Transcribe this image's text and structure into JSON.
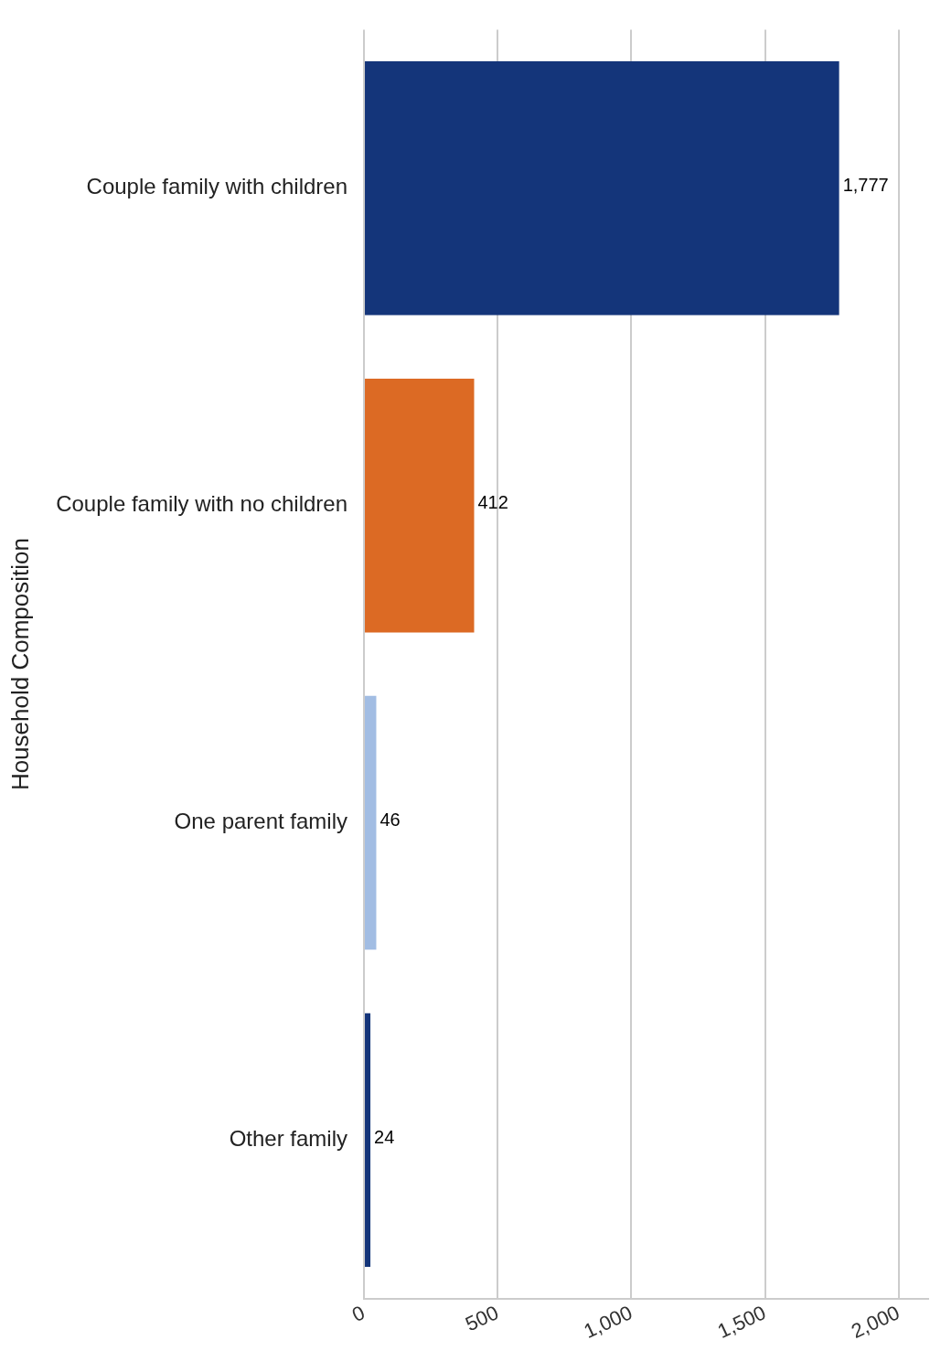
{
  "chart_data": {
    "type": "bar",
    "orientation": "horizontal",
    "ylabel": "Household Composition",
    "categories": [
      "Couple family with children",
      "Couple family with no children",
      "One parent family",
      "Other family"
    ],
    "values": [
      1777,
      412,
      46,
      24
    ],
    "colors": [
      "#14357a",
      "#dc6a24",
      "#a2bde3",
      "#14357a"
    ],
    "value_labels": [
      "1,777",
      "412",
      "46",
      "24"
    ],
    "xlim": [
      0,
      2110
    ],
    "xticks": [
      0,
      500,
      {
        "value": 1000,
        "label": "1,000"
      },
      {
        "value": 1500,
        "label": "1,500"
      },
      {
        "value": 2000,
        "label": "2,000"
      }
    ],
    "grid": "x",
    "legend": false
  }
}
